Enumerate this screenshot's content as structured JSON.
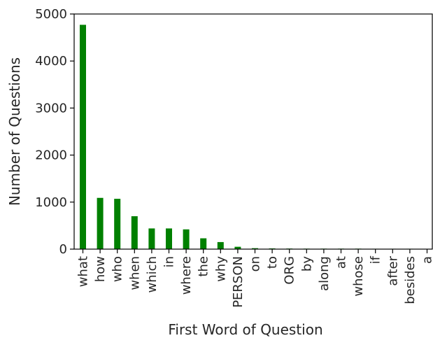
{
  "colors": {
    "bar": "#008000",
    "axis": "#000000",
    "text": "#262626",
    "background": "#ffffff"
  },
  "chart_data": {
    "type": "bar",
    "title": "",
    "xlabel": "First Word of Question",
    "ylabel": "Number of Questions",
    "categories": [
      "what",
      "how",
      "who",
      "when",
      "which",
      "in",
      "where",
      "the",
      "why",
      "PERSON",
      "on",
      "to",
      "ORG",
      "by",
      "along",
      "at",
      "whose",
      "if",
      "after",
      "besides",
      "a"
    ],
    "values": [
      4770,
      1090,
      1070,
      700,
      440,
      440,
      420,
      230,
      150,
      50,
      20,
      15,
      12,
      10,
      10,
      10,
      10,
      8,
      8,
      8,
      5
    ],
    "ylim": [
      0,
      5000
    ],
    "yticks": [
      0,
      1000,
      2000,
      3000,
      4000,
      5000
    ],
    "grid": false,
    "legend": "none"
  }
}
